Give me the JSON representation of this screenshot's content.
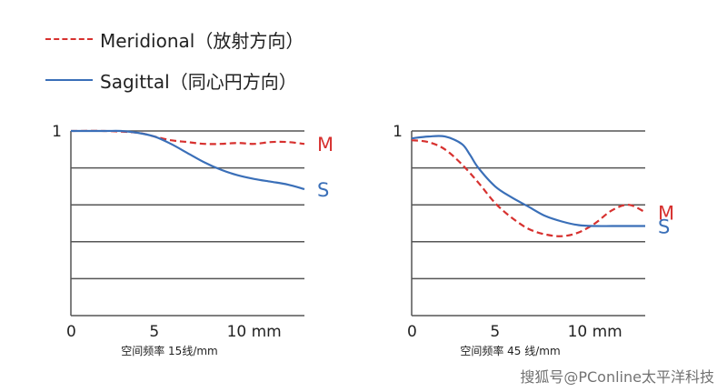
{
  "legend": {
    "items": [
      {
        "label": "Meridional（放射方向）",
        "style": "dashed",
        "color": "#d7312f"
      },
      {
        "label": "Sagittal（同心円方向）",
        "style": "solid",
        "color": "#3a6fb8"
      }
    ]
  },
  "colors": {
    "meridional": "#d7312f",
    "sagittal": "#3a6fb8",
    "grid": "#555555",
    "axis": "#555555",
    "text": "#222222"
  },
  "watermark": "搜狐号@PConline太平洋科技",
  "chart_data": [
    {
      "type": "line",
      "title": "",
      "xlabel": "空间频率 15线/mm",
      "ylabel": "",
      "xlim": [
        0,
        14
      ],
      "ylim": [
        0,
        1
      ],
      "x_ticks": [
        {
          "value": 0,
          "label": "0"
        },
        {
          "value": 5,
          "label": "5"
        },
        {
          "value": 10,
          "label": "10 mm"
        }
      ],
      "y_ticks": [
        {
          "value": 1,
          "label": "1"
        }
      ],
      "grid_y": [
        0.2,
        0.4,
        0.6,
        0.8
      ],
      "series": [
        {
          "name": "M",
          "key": "meridional",
          "style": "dashed",
          "x": [
            0,
            2,
            4,
            5,
            6,
            7,
            8,
            9,
            10,
            11,
            12,
            13,
            14
          ],
          "y": [
            1.0,
            1.0,
            0.99,
            0.97,
            0.95,
            0.94,
            0.93,
            0.93,
            0.935,
            0.93,
            0.94,
            0.94,
            0.93
          ]
        },
        {
          "name": "S",
          "key": "sagittal",
          "style": "solid",
          "x": [
            0,
            2,
            3,
            4,
            5,
            6,
            7,
            8,
            9,
            10,
            11,
            12,
            13,
            14
          ],
          "y": [
            1.0,
            1.0,
            1.0,
            0.99,
            0.97,
            0.93,
            0.88,
            0.83,
            0.79,
            0.76,
            0.74,
            0.725,
            0.71,
            0.685
          ]
        }
      ]
    },
    {
      "type": "line",
      "title": "",
      "xlabel": "空间频率 45 线/mm",
      "ylabel": "",
      "xlim": [
        0,
        14
      ],
      "ylim": [
        0,
        1
      ],
      "x_ticks": [
        {
          "value": 0,
          "label": "0"
        },
        {
          "value": 5,
          "label": "5"
        },
        {
          "value": 10,
          "label": "10 mm"
        }
      ],
      "y_ticks": [
        {
          "value": 1,
          "label": "1"
        }
      ],
      "grid_y": [
        0.2,
        0.4,
        0.6,
        0.8
      ],
      "series": [
        {
          "name": "M",
          "key": "meridional",
          "style": "dashed",
          "x": [
            0,
            1,
            2,
            3,
            4,
            5,
            6,
            7,
            8,
            9,
            10,
            11,
            12,
            13,
            14
          ],
          "y": [
            0.95,
            0.94,
            0.9,
            0.82,
            0.72,
            0.61,
            0.53,
            0.47,
            0.44,
            0.43,
            0.45,
            0.5,
            0.57,
            0.6,
            0.56
          ]
        },
        {
          "name": "S",
          "key": "sagittal",
          "style": "solid",
          "x": [
            0,
            1,
            2,
            3,
            3.5,
            4,
            5,
            6,
            7,
            8,
            9,
            10,
            11,
            12,
            13,
            14
          ],
          "y": [
            0.96,
            0.97,
            0.97,
            0.93,
            0.87,
            0.8,
            0.7,
            0.64,
            0.59,
            0.54,
            0.51,
            0.49,
            0.485,
            0.485,
            0.485,
            0.485
          ]
        }
      ]
    }
  ]
}
